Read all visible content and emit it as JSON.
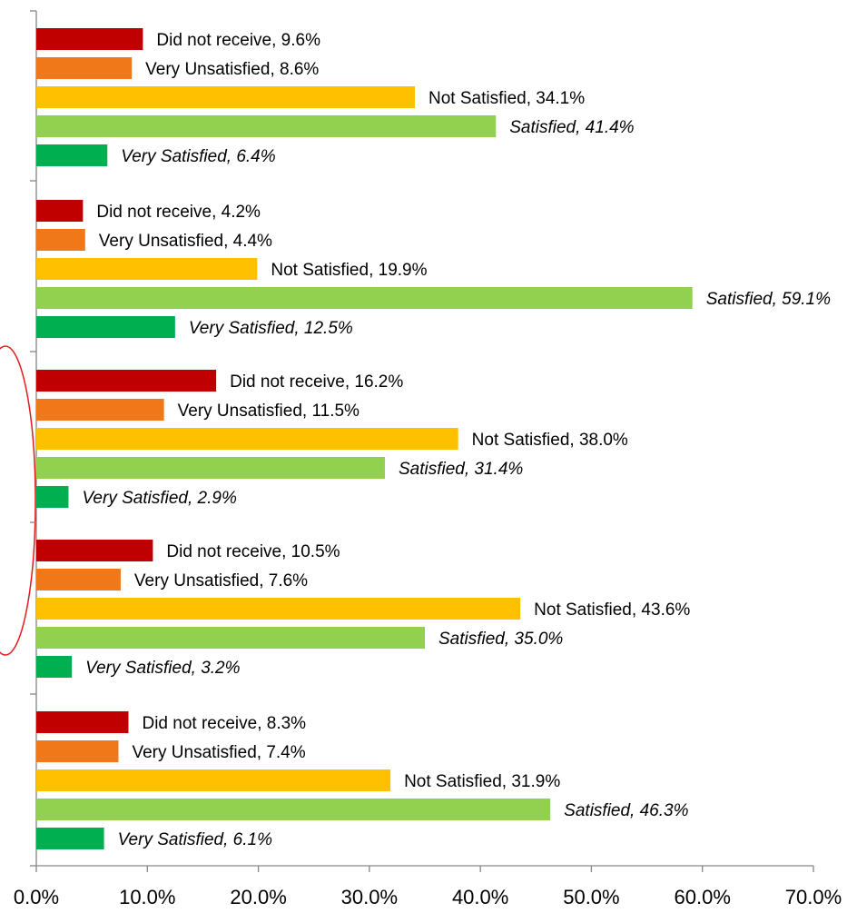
{
  "chart_data": {
    "type": "bar",
    "orientation": "horizontal",
    "xlim": [
      0,
      70
    ],
    "x_ticks": [
      "0.0%",
      "10.0%",
      "20.0%",
      "30.0%",
      "40.0%",
      "50.0%",
      "60.0%",
      "70.0%"
    ],
    "grid": false,
    "legend": "none",
    "categories": [
      "Did not receive",
      "Very Unsatisfied",
      "Not Satisfied",
      "Satisfied",
      "Very Satisfied"
    ],
    "colors": {
      "Did not receive": "#C00000",
      "Very Unsatisfied": "#F07818",
      "Not Satisfied": "#FFC000",
      "Satisfied": "#92D050",
      "Very Satisfied": "#00B050"
    },
    "italic_categories": [
      "Satisfied",
      "Very Satisfied"
    ],
    "groups": [
      {
        "values": [
          9.6,
          8.6,
          34.1,
          41.4,
          6.4
        ],
        "labels": [
          "Did not receive, 9.6%",
          "Very Unsatisfied, 8.6%",
          "Not Satisfied, 34.1%",
          "Satisfied, 41.4%",
          "Very Satisfied, 6.4%"
        ]
      },
      {
        "values": [
          4.2,
          4.4,
          19.9,
          59.1,
          12.5
        ],
        "labels": [
          "Did not receive, 4.2%",
          "Very Unsatisfied, 4.4%",
          "Not Satisfied, 19.9%",
          "Satisfied, 59.1%",
          "Very Satisfied, 12.5%"
        ]
      },
      {
        "values": [
          16.2,
          11.5,
          38.0,
          31.4,
          2.9
        ],
        "labels": [
          "Did not receive, 16.2%",
          "Very Unsatisfied, 11.5%",
          "Not Satisfied, 38.0%",
          "Satisfied, 31.4%",
          "Very Satisfied, 2.9%"
        ]
      },
      {
        "values": [
          10.5,
          7.6,
          43.6,
          35.0,
          3.2
        ],
        "labels": [
          "Did not receive, 10.5%",
          "Very Unsatisfied, 7.6%",
          "Not Satisfied, 43.6%",
          "Satisfied, 35.0%",
          "Very Satisfied, 3.2%"
        ]
      },
      {
        "values": [
          8.3,
          7.4,
          31.9,
          46.3,
          6.1
        ],
        "labels": [
          "Did not receive, 8.3%",
          "Very Unsatisfied, 7.4%",
          "Not Satisfied, 31.9%",
          "Satisfied, 46.3%",
          "Very Satisfied, 6.1%"
        ]
      }
    ],
    "annotation": {
      "shape": "ellipse",
      "color": "#E31A1C",
      "highlights_group": 3
    }
  }
}
